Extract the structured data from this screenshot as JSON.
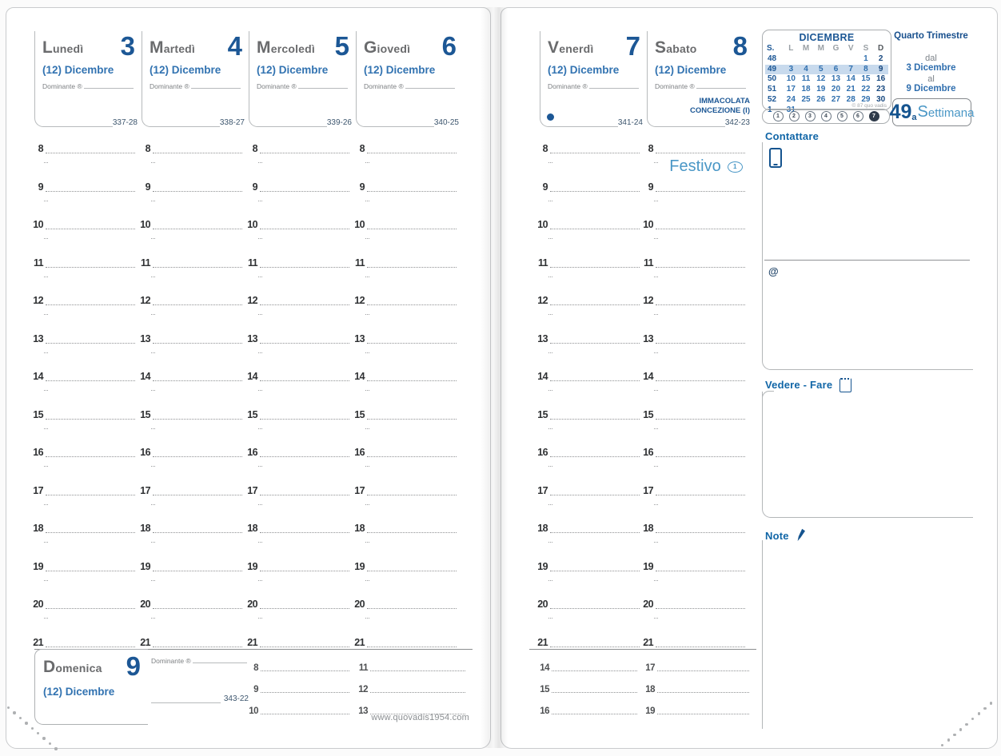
{
  "planner": {
    "labels": {
      "dominante": "Dominante ®"
    },
    "days": [
      {
        "name": "Lunedì",
        "number": "3",
        "month": "(12) Dicembre",
        "code": "337-28"
      },
      {
        "name": "Martedì",
        "number": "4",
        "month": "(12) Dicembre",
        "code": "338-27"
      },
      {
        "name": "Mercoledì",
        "number": "5",
        "month": "(12) Dicembre",
        "code": "339-26"
      },
      {
        "name": "Giovedì",
        "number": "6",
        "month": "(12) Dicembre",
        "code": "340-25"
      },
      {
        "name": "Venerdì",
        "number": "7",
        "month": "(12) Dicembre",
        "code": "341-24",
        "moon": "new-moon"
      },
      {
        "name": "Sabato",
        "number": "8",
        "month": "(12) Dicembre",
        "code": "342-23",
        "holiday_line1": "IMMACOLATA",
        "holiday_line2": "CONCEZIONE (I)"
      }
    ],
    "sunday": {
      "name": "Domenica",
      "number": "9",
      "month": "(12) Dicembre",
      "code": "343-22",
      "hour_columns": [
        [
          "8",
          "9",
          "10"
        ],
        [
          "11",
          "12",
          "13"
        ],
        [
          "14",
          "15",
          "16"
        ],
        [
          "17",
          "18",
          "19"
        ]
      ]
    },
    "grid_hours": [
      "8",
      "9",
      "10",
      "11",
      "12",
      "13",
      "14",
      "15",
      "16",
      "17",
      "18",
      "19",
      "20",
      "21"
    ],
    "festivo": {
      "label": "Festivo",
      "badge": "1"
    },
    "mini_calendar": {
      "title": "DICEMBRE",
      "week_header": "S.",
      "day_headers": [
        "L",
        "M",
        "M",
        "G",
        "V",
        "S",
        "D"
      ],
      "weeks": [
        {
          "num": "48",
          "days": [
            "",
            "",
            "",
            "",
            "",
            "1",
            "2"
          ]
        },
        {
          "num": "49",
          "days": [
            "3",
            "4",
            "5",
            "6",
            "7",
            "8",
            "9"
          ],
          "current": true
        },
        {
          "num": "50",
          "days": [
            "10",
            "11",
            "12",
            "13",
            "14",
            "15",
            "16"
          ]
        },
        {
          "num": "51",
          "days": [
            "17",
            "18",
            "19",
            "20",
            "21",
            "22",
            "23"
          ]
        },
        {
          "num": "52",
          "days": [
            "24",
            "25",
            "26",
            "27",
            "28",
            "29",
            "30"
          ]
        },
        {
          "num": "1",
          "days": [
            "31",
            "",
            "",
            "",
            "",
            "",
            ""
          ]
        }
      ],
      "copyright": "© 87 quo vadis",
      "day_circles": [
        "1",
        "2",
        "3",
        "4",
        "5",
        "6",
        "7"
      ],
      "active_circle": "7"
    },
    "quarter": {
      "title": "Quarto Trimestre",
      "from_label": "dal",
      "from_date": "3 Dicembre",
      "to_label": "al",
      "to_date": "9 Dicembre",
      "week_number": "49",
      "week_suffix": "a",
      "week_word": "Settimana"
    },
    "sidebar": {
      "contact_label": "Contattare",
      "email_symbol": "@",
      "todo_label": "Vedere - Fare",
      "notes_label": "Note"
    },
    "website": "www.quovadis1954.com",
    "colors": {
      "dark_blue": "#1c5795",
      "medium_blue": "#3273b1",
      "light_blue": "#4a97c6",
      "sidebar_blue": "#1166a7",
      "day_name_gray": "#6a6b6d",
      "line_gray": "#b7babc",
      "highlight_blue": "#c8daed"
    }
  }
}
